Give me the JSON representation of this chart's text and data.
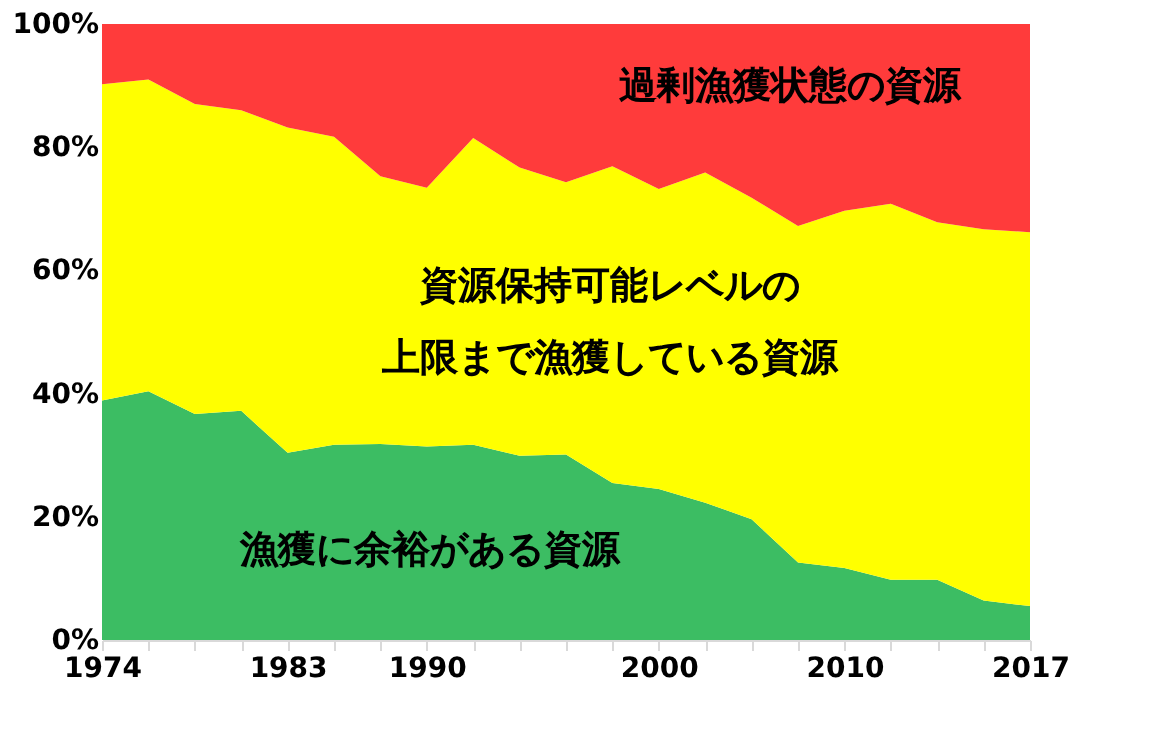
{
  "chart_data": {
    "type": "area",
    "stacked": true,
    "categories": [
      "1974",
      null,
      null,
      null,
      "1983",
      null,
      null,
      "1990",
      null,
      null,
      null,
      null,
      "2000",
      null,
      null,
      null,
      "2010",
      null,
      null,
      null,
      "2017"
    ],
    "series": [
      {
        "name": "漁獲に余裕がある資源",
        "color": "#3cbd63",
        "values": [
          38.9,
          40.4,
          36.7,
          37.2,
          30.4,
          31.7,
          31.8,
          31.4,
          31.7,
          29.9,
          30.1,
          25.5,
          24.5,
          22.3,
          19.6,
          12.6,
          11.7,
          9.8,
          9.8,
          6.4,
          5.5
        ]
      },
      {
        "name": "資源保持可能レベルの上限まで漁獲している資源",
        "color": "#ffff00",
        "values": [
          51.3,
          50.6,
          50.3,
          48.8,
          52.8,
          50.0,
          43.5,
          42.0,
          49.8,
          46.8,
          44.2,
          51.4,
          48.7,
          53.6,
          52.2,
          54.6,
          58.0,
          61.0,
          58.0,
          60.3,
          60.7
        ]
      },
      {
        "name": "過剰漁獲状態の資源",
        "color": "#ff3b3b",
        "values": [
          9.8,
          9.0,
          13.0,
          14.0,
          16.8,
          18.3,
          24.7,
          26.6,
          18.5,
          23.3,
          25.7,
          23.1,
          26.8,
          24.1,
          28.2,
          32.8,
          30.3,
          29.2,
          32.2,
          33.3,
          33.8
        ]
      }
    ],
    "ylim": [
      0,
      100
    ],
    "yticks": [
      {
        "value": 0,
        "label": "0%"
      },
      {
        "value": 20,
        "label": "20%"
      },
      {
        "value": 40,
        "label": "40%"
      },
      {
        "value": 60,
        "label": "60%"
      },
      {
        "value": 80,
        "label": "80%"
      },
      {
        "value": 100,
        "label": "100%"
      }
    ]
  }
}
